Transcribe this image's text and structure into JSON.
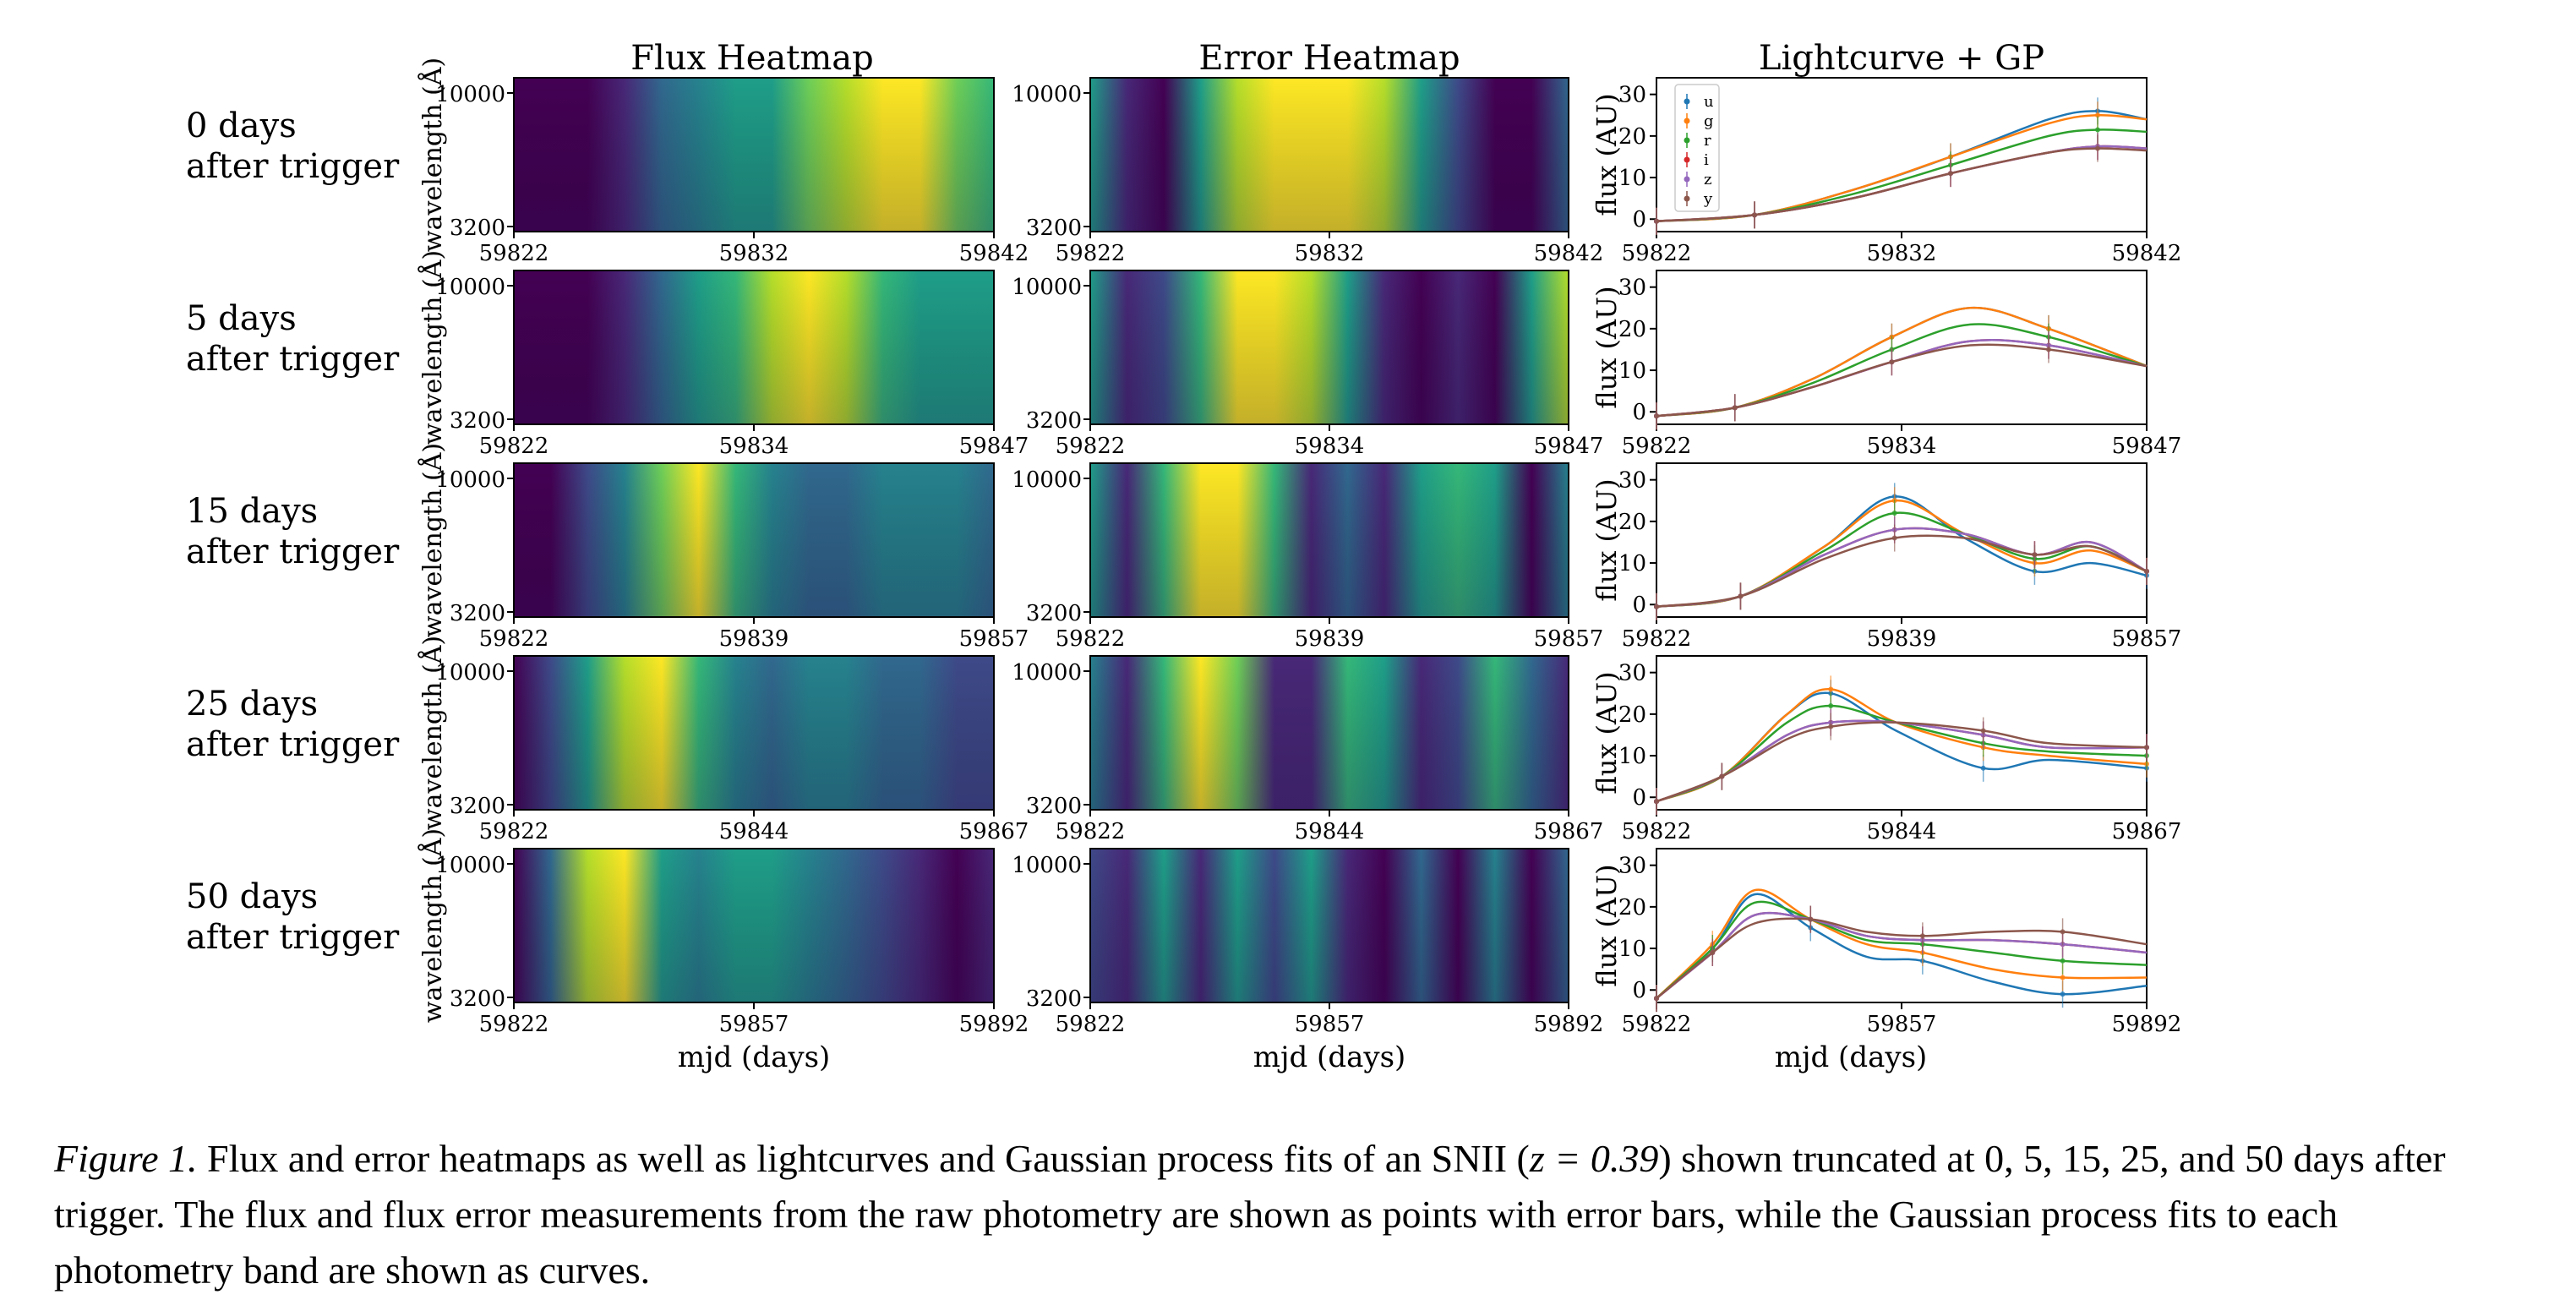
{
  "figure": {
    "column_titles": [
      "Flux Heatmap",
      "Error Heatmap",
      "Lightcurve + GP"
    ],
    "rows": [
      {
        "label_line1": "0 days",
        "label_line2": "after trigger",
        "x_ticks": [
          "59822",
          "59832",
          "59842"
        ]
      },
      {
        "label_line1": "5 days",
        "label_line2": "after trigger",
        "x_ticks": [
          "59822",
          "59834",
          "59847"
        ]
      },
      {
        "label_line1": "15 days",
        "label_line2": "after trigger",
        "x_ticks": [
          "59822",
          "59839",
          "59857"
        ]
      },
      {
        "label_line1": "25 days",
        "label_line2": "after trigger",
        "x_ticks": [
          "59822",
          "59844",
          "59867"
        ]
      },
      {
        "label_line1": "50 days",
        "label_line2": "after trigger",
        "x_ticks": [
          "59822",
          "59857",
          "59892"
        ]
      }
    ],
    "heatmap_ylabel": "wavelength (Å)",
    "heatmap_yticks": [
      "10000",
      "3200"
    ],
    "lc_ylabel": "flux (AU)",
    "lc_yticks": [
      "0",
      "10",
      "20",
      "30"
    ],
    "xlabel": "mjd (days)",
    "legend": [
      "u",
      "g",
      "r",
      "i",
      "z",
      "y"
    ],
    "colors": {
      "u": "#1f77b4",
      "g": "#ff7f0e",
      "r": "#2ca02c",
      "i": "#d62728",
      "z": "#9467bd",
      "y": "#8c564b",
      "viridis_low": "#440154",
      "viridis_mid": "#21918c",
      "viridis_high": "#fde725"
    }
  },
  "chart_data": [
    {
      "type": "line",
      "title": "Lightcurve + GP",
      "subtitle": "0 days after trigger",
      "xlabel": "mjd (days)",
      "ylabel": "flux (AU)",
      "xlim": [
        59822,
        59842
      ],
      "ylim": [
        -3,
        34
      ],
      "series": [
        {
          "name": "u",
          "x": [
            59822,
            59826,
            59830,
            59834,
            59838,
            59840,
            59842
          ],
          "y": [
            -0.5,
            1,
            7,
            15,
            24,
            26,
            24
          ]
        },
        {
          "name": "g",
          "x": [
            59822,
            59826,
            59830,
            59834,
            59838,
            59840,
            59842
          ],
          "y": [
            -0.5,
            1,
            7,
            15,
            23,
            25,
            24
          ]
        },
        {
          "name": "r",
          "x": [
            59822,
            59826,
            59830,
            59834,
            59838,
            59840,
            59842
          ],
          "y": [
            -0.5,
            1,
            6,
            13,
            20,
            21.5,
            21
          ]
        },
        {
          "name": "i",
          "x": [
            59822,
            59826,
            59830,
            59834,
            59838,
            59840,
            59842
          ],
          "y": [
            -0.5,
            1,
            5,
            11,
            16,
            17.5,
            17
          ]
        },
        {
          "name": "z",
          "x": [
            59822,
            59826,
            59830,
            59834,
            59838,
            59840,
            59842
          ],
          "y": [
            -0.5,
            1,
            5,
            11,
            16,
            17.5,
            17
          ]
        },
        {
          "name": "y",
          "x": [
            59822,
            59826,
            59830,
            59834,
            59838,
            59840,
            59842
          ],
          "y": [
            -0.5,
            1,
            5,
            11,
            16,
            17,
            16.5
          ]
        }
      ]
    },
    {
      "type": "line",
      "title": "Lightcurve + GP",
      "subtitle": "5 days after trigger",
      "xlabel": "mjd (days)",
      "ylabel": "flux (AU)",
      "xlim": [
        59822,
        59847
      ],
      "ylim": [
        -3,
        34
      ],
      "series": [
        {
          "name": "u",
          "x": [
            59822,
            59826,
            59830,
            59834,
            59838,
            59842,
            59847
          ],
          "y": [
            -1,
            1,
            8,
            18,
            25,
            20,
            11
          ]
        },
        {
          "name": "g",
          "x": [
            59822,
            59826,
            59830,
            59834,
            59838,
            59842,
            59847
          ],
          "y": [
            -1,
            1,
            8,
            18,
            25,
            20,
            11
          ]
        },
        {
          "name": "r",
          "x": [
            59822,
            59826,
            59830,
            59834,
            59838,
            59842,
            59847
          ],
          "y": [
            -1,
            1,
            7,
            15,
            21,
            18,
            11
          ]
        },
        {
          "name": "i",
          "x": [
            59822,
            59826,
            59830,
            59834,
            59838,
            59842,
            59847
          ],
          "y": [
            -1,
            1,
            6,
            12,
            17,
            16,
            11
          ]
        },
        {
          "name": "z",
          "x": [
            59822,
            59826,
            59830,
            59834,
            59838,
            59842,
            59847
          ],
          "y": [
            -1,
            1,
            6,
            12,
            17,
            16,
            11
          ]
        },
        {
          "name": "y",
          "x": [
            59822,
            59826,
            59830,
            59834,
            59838,
            59842,
            59847
          ],
          "y": [
            -1,
            1,
            6,
            12,
            16,
            15,
            11
          ]
        }
      ]
    },
    {
      "type": "line",
      "title": "Lightcurve + GP",
      "subtitle": "15 days after trigger",
      "xlabel": "mjd (days)",
      "ylabel": "flux (AU)",
      "xlim": [
        59822,
        59857
      ],
      "ylim": [
        -3,
        34
      ],
      "series": [
        {
          "name": "u",
          "x": [
            59822,
            59828,
            59834,
            59839,
            59844,
            59849,
            59853,
            59857
          ],
          "y": [
            -0.5,
            2,
            14,
            26,
            16,
            8,
            10,
            7
          ]
        },
        {
          "name": "g",
          "x": [
            59822,
            59828,
            59834,
            59839,
            59844,
            59849,
            59853,
            59857
          ],
          "y": [
            -0.5,
            2,
            14,
            25,
            17,
            10,
            13,
            8
          ]
        },
        {
          "name": "r",
          "x": [
            59822,
            59828,
            59834,
            59839,
            59844,
            59849,
            59853,
            59857
          ],
          "y": [
            -0.5,
            2,
            13,
            22,
            17,
            11,
            14,
            8
          ]
        },
        {
          "name": "i",
          "x": [
            59822,
            59828,
            59834,
            59839,
            59844,
            59849,
            59853,
            59857
          ],
          "y": [
            -0.5,
            2,
            12,
            18,
            17,
            12,
            15,
            8
          ]
        },
        {
          "name": "z",
          "x": [
            59822,
            59828,
            59834,
            59839,
            59844,
            59849,
            59853,
            59857
          ],
          "y": [
            -0.5,
            2,
            12,
            18,
            17,
            12,
            15,
            8
          ]
        },
        {
          "name": "y",
          "x": [
            59822,
            59828,
            59834,
            59839,
            59844,
            59849,
            59853,
            59857
          ],
          "y": [
            -0.5,
            2,
            11,
            16,
            16,
            12,
            14,
            8
          ]
        }
      ]
    },
    {
      "type": "line",
      "title": "Lightcurve + GP",
      "subtitle": "25 days after trigger",
      "xlabel": "mjd (days)",
      "ylabel": "flux (AU)",
      "xlim": [
        59822,
        59867
      ],
      "ylim": [
        -3,
        34
      ],
      "series": [
        {
          "name": "u",
          "x": [
            59822,
            59828,
            59834,
            59838,
            59844,
            59852,
            59858,
            59867
          ],
          "y": [
            -1,
            5,
            20,
            25,
            16,
            7,
            9,
            7
          ]
        },
        {
          "name": "g",
          "x": [
            59822,
            59828,
            59834,
            59838,
            59844,
            59852,
            59858,
            59867
          ],
          "y": [
            -1,
            5,
            20,
            26,
            18,
            12,
            10,
            8
          ]
        },
        {
          "name": "r",
          "x": [
            59822,
            59828,
            59834,
            59838,
            59844,
            59852,
            59858,
            59867
          ],
          "y": [
            -1,
            5,
            18,
            22,
            18,
            13,
            11,
            10
          ]
        },
        {
          "name": "i",
          "x": [
            59822,
            59828,
            59834,
            59838,
            59844,
            59852,
            59858,
            59867
          ],
          "y": [
            -1,
            5,
            15,
            18,
            18,
            15,
            12,
            12
          ]
        },
        {
          "name": "z",
          "x": [
            59822,
            59828,
            59834,
            59838,
            59844,
            59852,
            59858,
            59867
          ],
          "y": [
            -1,
            5,
            15,
            18,
            18,
            15,
            12,
            12
          ]
        },
        {
          "name": "y",
          "x": [
            59822,
            59828,
            59834,
            59838,
            59844,
            59852,
            59858,
            59867
          ],
          "y": [
            -1,
            5,
            14,
            17,
            18,
            16,
            13,
            12
          ]
        }
      ]
    },
    {
      "type": "line",
      "title": "Lightcurve + GP",
      "subtitle": "50 days after trigger",
      "xlabel": "mjd (days)",
      "ylabel": "flux (AU)",
      "xlim": [
        59822,
        59892
      ],
      "ylim": [
        -3,
        34
      ],
      "series": [
        {
          "name": "u",
          "x": [
            59822,
            59830,
            59836,
            59844,
            59852,
            59860,
            59870,
            59880,
            59892
          ],
          "y": [
            -2,
            10,
            23,
            15,
            8,
            7,
            2,
            -1,
            1
          ]
        },
        {
          "name": "g",
          "x": [
            59822,
            59830,
            59836,
            59844,
            59852,
            59860,
            59870,
            59880,
            59892
          ],
          "y": [
            -2,
            11,
            24,
            17,
            11,
            9,
            5,
            3,
            3
          ]
        },
        {
          "name": "r",
          "x": [
            59822,
            59830,
            59836,
            59844,
            59852,
            59860,
            59870,
            59880,
            59892
          ],
          "y": [
            -2,
            10,
            21,
            17,
            12,
            11,
            9,
            7,
            6
          ]
        },
        {
          "name": "i",
          "x": [
            59822,
            59830,
            59836,
            59844,
            59852,
            59860,
            59870,
            59880,
            59892
          ],
          "y": [
            -2,
            9,
            18,
            17,
            13,
            12,
            12,
            11,
            9
          ]
        },
        {
          "name": "z",
          "x": [
            59822,
            59830,
            59836,
            59844,
            59852,
            59860,
            59870,
            59880,
            59892
          ],
          "y": [
            -2,
            9,
            18,
            17,
            13,
            12,
            12,
            11,
            9
          ]
        },
        {
          "name": "y",
          "x": [
            59822,
            59830,
            59836,
            59844,
            59852,
            59860,
            59870,
            59880,
            59892
          ],
          "y": [
            -2,
            9,
            16,
            17,
            14,
            13,
            14,
            14,
            11
          ]
        }
      ]
    }
  ],
  "caption": {
    "label": "Figure 1.",
    "text_a": " Flux and error heatmaps as well as lightcurves and Gaussian process fits of an SNII (",
    "math": "z = 0.39",
    "text_b": ") shown truncated at 0, 5, 15, 25, and 50 days after trigger.  The flux and flux error measurements from the raw photometry are shown as points with error bars, while the Gaussian process fits to each photometry band are shown as curves."
  }
}
